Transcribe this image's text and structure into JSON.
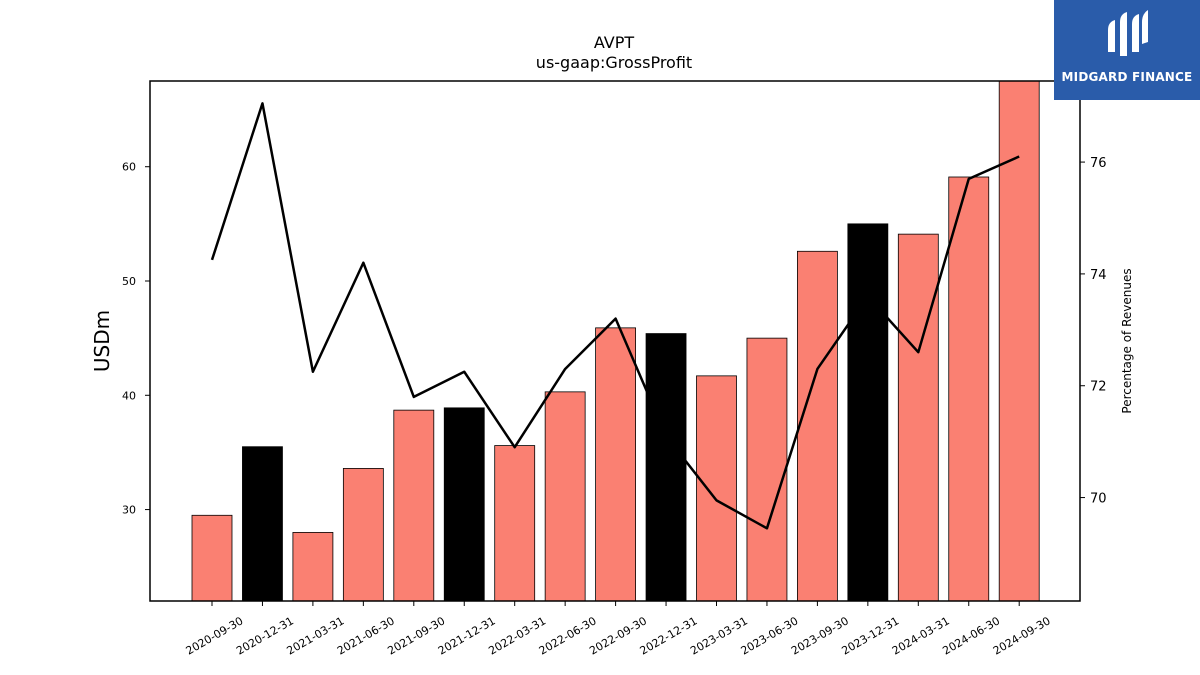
{
  "brand": {
    "name": "MIDGARD FINANCE",
    "color": "#2a5caa"
  },
  "chart_data": {
    "type": "bar",
    "title": "AVPT",
    "subtitle": "us-gaap:GrossProfit",
    "ylabel": "USDm",
    "y2label": "Percentage of Revenues",
    "ylim": [
      22,
      67.5
    ],
    "y2lim": [
      68.15,
      77.45
    ],
    "yticks": [
      30,
      40,
      50,
      60
    ],
    "y2ticks": [
      70,
      72,
      74,
      76
    ],
    "categories": [
      "2020-09-30",
      "2020-12-31",
      "2021-03-31",
      "2021-06-30",
      "2021-09-30",
      "2021-12-31",
      "2022-03-31",
      "2022-06-30",
      "2022-09-30",
      "2022-12-31",
      "2023-03-31",
      "2023-06-30",
      "2023-09-30",
      "2023-12-31",
      "2024-03-31",
      "2024-06-30",
      "2024-09-30"
    ],
    "series": [
      {
        "type": "bar",
        "values": [
          29.5,
          35.5,
          28.0,
          33.6,
          38.7,
          38.9,
          35.6,
          40.3,
          45.9,
          45.4,
          41.7,
          45.0,
          52.6,
          55.0,
          54.1,
          59.1,
          67.5
        ],
        "colors": [
          "#fa8072",
          "#000000",
          "#fa8072",
          "#fa8072",
          "#fa8072",
          "#000000",
          "#fa8072",
          "#fa8072",
          "#fa8072",
          "#000000",
          "#fa8072",
          "#fa8072",
          "#fa8072",
          "#000000",
          "#fa8072",
          "#fa8072",
          "#fa8072"
        ]
      },
      {
        "type": "line",
        "axis": "right",
        "values": [
          74.25,
          77.05,
          72.25,
          74.2,
          71.8,
          72.25,
          70.9,
          72.3,
          73.2,
          71.1,
          69.95,
          69.45,
          72.3,
          73.6,
          72.6,
          75.7,
          76.1
        ],
        "color": "#000000"
      }
    ],
    "grid": false
  }
}
